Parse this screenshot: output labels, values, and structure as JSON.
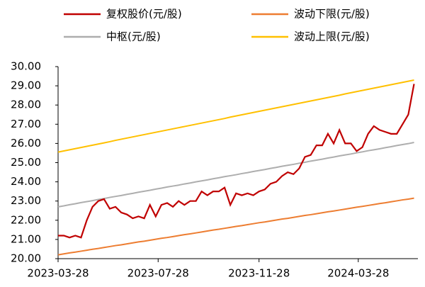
{
  "chart_data": {
    "type": "line",
    "x": [
      "2023-03-28",
      "2023-04-04",
      "2023-04-11",
      "2023-04-18",
      "2023-04-25",
      "2023-05-02",
      "2023-05-09",
      "2023-05-16",
      "2023-05-23",
      "2023-05-30",
      "2023-06-06",
      "2023-06-13",
      "2023-06-20",
      "2023-06-27",
      "2023-07-04",
      "2023-07-11",
      "2023-07-18",
      "2023-07-25",
      "2023-08-01",
      "2023-08-08",
      "2023-08-15",
      "2023-08-22",
      "2023-08-29",
      "2023-09-05",
      "2023-09-12",
      "2023-09-19",
      "2023-09-26",
      "2023-10-03",
      "2023-10-10",
      "2023-10-17",
      "2023-10-24",
      "2023-10-31",
      "2023-11-07",
      "2023-11-14",
      "2023-11-21",
      "2023-11-28",
      "2023-12-05",
      "2023-12-12",
      "2023-12-19",
      "2023-12-26",
      "2024-01-02",
      "2024-01-09",
      "2024-01-16",
      "2024-01-23",
      "2024-01-30",
      "2024-02-06",
      "2024-02-13",
      "2024-02-20",
      "2024-02-27",
      "2024-03-05",
      "2024-03-12",
      "2024-03-19",
      "2024-03-26",
      "2024-04-02",
      "2024-04-09",
      "2024-04-16",
      "2024-04-23",
      "2024-04-30",
      "2024-05-07",
      "2024-05-14",
      "2024-05-21",
      "2024-05-28",
      "2024-06-04"
    ],
    "series": [
      {
        "name": "复权股价(元/股)",
        "color": "#c00000",
        "values": [
          21.2,
          21.2,
          21.1,
          21.2,
          21.1,
          22.0,
          22.7,
          23.0,
          23.1,
          22.6,
          22.7,
          22.4,
          22.3,
          22.1,
          22.2,
          22.1,
          22.8,
          22.2,
          22.8,
          22.9,
          22.7,
          23.0,
          22.8,
          23.0,
          23.0,
          23.5,
          23.3,
          23.5,
          23.5,
          23.7,
          22.8,
          23.4,
          23.3,
          23.4,
          23.3,
          23.5,
          23.6,
          23.9,
          24.0,
          24.3,
          24.5,
          24.4,
          24.7,
          25.3,
          25.4,
          25.9,
          25.9,
          26.5,
          26.0,
          26.7,
          26.0,
          26.0,
          25.6,
          25.8,
          26.5,
          26.9,
          26.7,
          26.6,
          26.5,
          26.5,
          27.0,
          27.5,
          29.1
        ]
      },
      {
        "name": "波动下限(元/股)",
        "color": "#ed7d31",
        "values": [
          20.2,
          20.25,
          20.3,
          20.34,
          20.39,
          20.44,
          20.49,
          20.53,
          20.58,
          20.63,
          20.68,
          20.72,
          20.77,
          20.82,
          20.87,
          20.91,
          20.96,
          21.01,
          21.06,
          21.1,
          21.15,
          21.2,
          21.25,
          21.29,
          21.34,
          21.39,
          21.44,
          21.49,
          21.53,
          21.58,
          21.63,
          21.68,
          21.72,
          21.77,
          21.82,
          21.87,
          21.91,
          21.96,
          22.01,
          22.06,
          22.1,
          22.15,
          22.2,
          22.25,
          22.29,
          22.34,
          22.39,
          22.44,
          22.48,
          22.53,
          22.58,
          22.63,
          22.68,
          22.72,
          22.77,
          22.82,
          22.87,
          22.91,
          22.96,
          23.01,
          23.06,
          23.1,
          23.15
        ]
      },
      {
        "name": "中枢(元/股)",
        "color": "#aeaeae",
        "values": [
          22.7,
          22.75,
          22.81,
          22.86,
          22.92,
          22.97,
          23.02,
          23.08,
          23.13,
          23.19,
          23.24,
          23.29,
          23.35,
          23.4,
          23.46,
          23.51,
          23.56,
          23.62,
          23.67,
          23.73,
          23.78,
          23.83,
          23.89,
          23.94,
          24.0,
          24.05,
          24.1,
          24.16,
          24.21,
          24.27,
          24.32,
          24.37,
          24.43,
          24.48,
          24.54,
          24.59,
          24.64,
          24.7,
          24.75,
          24.81,
          24.86,
          24.91,
          24.97,
          25.02,
          25.08,
          25.13,
          25.18,
          25.24,
          25.29,
          25.35,
          25.4,
          25.45,
          25.51,
          25.56,
          25.62,
          25.67,
          25.72,
          25.78,
          25.83,
          25.89,
          25.94,
          25.99,
          26.05
        ]
      },
      {
        "name": "波动上限(元/股)",
        "color": "#ffc000",
        "values": [
          25.55,
          25.61,
          25.67,
          25.73,
          25.79,
          25.85,
          25.91,
          25.97,
          26.03,
          26.09,
          26.16,
          26.22,
          26.28,
          26.34,
          26.4,
          26.46,
          26.52,
          26.58,
          26.64,
          26.7,
          26.76,
          26.82,
          26.88,
          26.94,
          27.0,
          27.06,
          27.12,
          27.18,
          27.24,
          27.3,
          27.37,
          27.43,
          27.49,
          27.55,
          27.61,
          27.67,
          27.73,
          27.79,
          27.85,
          27.91,
          27.97,
          28.03,
          28.09,
          28.15,
          28.21,
          28.27,
          28.33,
          28.39,
          28.45,
          28.51,
          28.58,
          28.64,
          28.7,
          28.76,
          28.82,
          28.88,
          28.94,
          29.0,
          29.06,
          29.12,
          29.18,
          29.24,
          29.3
        ]
      }
    ],
    "xlim": [
      "2023-03-28",
      "2024-06-07"
    ],
    "xticks": [
      "2023-03-28",
      "2023-07-28",
      "2023-11-28",
      "2024-03-28"
    ],
    "ylim": [
      20,
      30
    ],
    "yticks": [
      {
        "value": 20,
        "label": "20.00"
      },
      {
        "value": 21,
        "label": "21.00"
      },
      {
        "value": 22,
        "label": "22.00"
      },
      {
        "value": 23,
        "label": "23.00"
      },
      {
        "value": 24,
        "label": "24.00"
      },
      {
        "value": 25,
        "label": "25.00"
      },
      {
        "value": 26,
        "label": "26.00"
      },
      {
        "value": 27,
        "label": "27.00"
      },
      {
        "value": 28,
        "label": "28.00"
      },
      {
        "value": 29,
        "label": "29.00"
      },
      {
        "value": 30,
        "label": "30.00"
      }
    ],
    "grid": false
  }
}
